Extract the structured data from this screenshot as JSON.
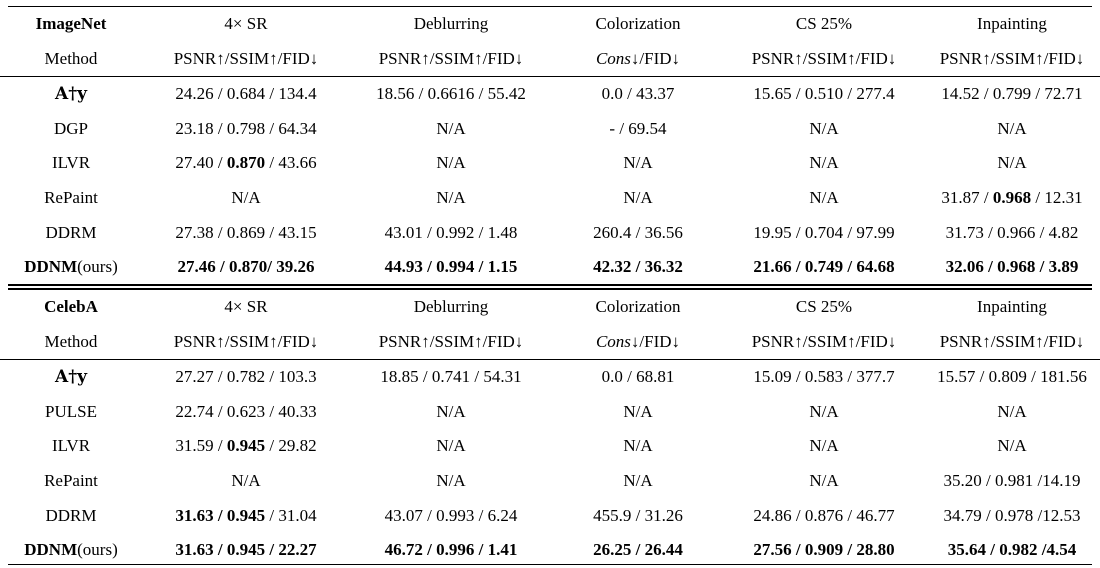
{
  "sections": [
    {
      "dataset": "ImageNet",
      "tasks": [
        "4× SR",
        "Deblurring",
        "Colorization",
        "CS 25%",
        "Inpainting"
      ],
      "method_label": "Method",
      "metrics": [
        {
          "parts": [
            {
              "t": "PSNR↑/SSIM↑/FID↓",
              "b": false,
              "i": false
            }
          ]
        },
        {
          "parts": [
            {
              "t": "PSNR↑/SSIM↑/FID↓",
              "b": false,
              "i": false
            }
          ]
        },
        {
          "parts": [
            {
              "t": "Cons",
              "b": false,
              "i": true
            },
            {
              "t": "↓/FID↓",
              "b": false,
              "i": false
            }
          ]
        },
        {
          "parts": [
            {
              "t": "PSNR↑/SSIM↑/FID↓",
              "b": false,
              "i": false
            }
          ]
        },
        {
          "parts": [
            {
              "t": "PSNR↑/SSIM↑/FID↓",
              "b": false,
              "i": false
            }
          ]
        }
      ],
      "rows": [
        {
          "method": "A†y",
          "method_style": "pinv",
          "cells": [
            [
              {
                "t": "24.26 / 0.684 / 134.4",
                "b": false
              }
            ],
            [
              {
                "t": "18.56 / 0.6616 / 55.42",
                "b": false
              }
            ],
            [
              {
                "t": "0.0 / 43.37",
                "b": false
              }
            ],
            [
              {
                "t": "15.65 / 0.510 / 277.4",
                "b": false
              }
            ],
            [
              {
                "t": "14.52 / 0.799 / 72.71",
                "b": false
              }
            ]
          ]
        },
        {
          "method": "DGP",
          "method_style": "plain",
          "cells": [
            [
              {
                "t": "23.18 / 0.798 / 64.34",
                "b": false
              }
            ],
            [
              {
                "t": "N/A",
                "b": false
              }
            ],
            [
              {
                "t": "- / 69.54",
                "b": false
              }
            ],
            [
              {
                "t": "N/A",
                "b": false
              }
            ],
            [
              {
                "t": "N/A",
                "b": false
              }
            ]
          ]
        },
        {
          "method": "ILVR",
          "method_style": "plain",
          "cells": [
            [
              {
                "t": "27.40 / ",
                "b": false
              },
              {
                "t": "0.870",
                "b": true
              },
              {
                "t": " / 43.66",
                "b": false
              }
            ],
            [
              {
                "t": "N/A",
                "b": false
              }
            ],
            [
              {
                "t": "N/A",
                "b": false
              }
            ],
            [
              {
                "t": "N/A",
                "b": false
              }
            ],
            [
              {
                "t": "N/A",
                "b": false
              }
            ]
          ]
        },
        {
          "method": "RePaint",
          "method_style": "plain",
          "cells": [
            [
              {
                "t": "N/A",
                "b": false
              }
            ],
            [
              {
                "t": "N/A",
                "b": false
              }
            ],
            [
              {
                "t": "N/A",
                "b": false
              }
            ],
            [
              {
                "t": "N/A",
                "b": false
              }
            ],
            [
              {
                "t": "31.87 / ",
                "b": false
              },
              {
                "t": "0.968",
                "b": true
              },
              {
                "t": " / 12.31",
                "b": false
              }
            ]
          ]
        },
        {
          "method": "DDRM",
          "method_style": "plain",
          "cells": [
            [
              {
                "t": "27.38 / 0.869 / 43.15",
                "b": false
              }
            ],
            [
              {
                "t": "43.01 / 0.992 / 1.48",
                "b": false
              }
            ],
            [
              {
                "t": "260.4 / 36.56",
                "b": false
              }
            ],
            [
              {
                "t": "19.95 / 0.704 / 97.99",
                "b": false
              }
            ],
            [
              {
                "t": "31.73 / 0.966 / 4.82",
                "b": false
              }
            ]
          ]
        },
        {
          "method": "DDNM",
          "method_suffix": "(ours)",
          "method_style": "ours",
          "cells": [
            [
              {
                "t": "27.46 / 0.870/ 39.26",
                "b": true
              }
            ],
            [
              {
                "t": "44.93 / 0.994 / 1.15",
                "b": true
              }
            ],
            [
              {
                "t": "42.32 / 36.32",
                "b": true
              }
            ],
            [
              {
                "t": "21.66 / 0.749 / 64.68",
                "b": true
              }
            ],
            [
              {
                "t": "32.06 / 0.968 / 3.89",
                "b": true
              }
            ]
          ]
        }
      ]
    },
    {
      "dataset": "CelebA",
      "tasks": [
        "4× SR",
        "Deblurring",
        "Colorization",
        "CS 25%",
        "Inpainting"
      ],
      "method_label": "Method",
      "metrics": [
        {
          "parts": [
            {
              "t": "PSNR↑/SSIM↑/FID↓",
              "b": false,
              "i": false
            }
          ]
        },
        {
          "parts": [
            {
              "t": "PSNR↑/SSIM↑/FID↓",
              "b": false,
              "i": false
            }
          ]
        },
        {
          "parts": [
            {
              "t": "Cons",
              "b": false,
              "i": true
            },
            {
              "t": "↓/FID↓",
              "b": false,
              "i": false
            }
          ]
        },
        {
          "parts": [
            {
              "t": "PSNR↑/SSIM↑/FID↓",
              "b": false,
              "i": false
            }
          ]
        },
        {
          "parts": [
            {
              "t": "PSNR↑/SSIM↑/FID↓",
              "b": false,
              "i": false
            }
          ]
        }
      ],
      "rows": [
        {
          "method": "A†y",
          "method_style": "pinv",
          "cells": [
            [
              {
                "t": "27.27 / 0.782 / 103.3",
                "b": false
              }
            ],
            [
              {
                "t": "18.85 / 0.741 / 54.31",
                "b": false
              }
            ],
            [
              {
                "t": "0.0 / 68.81",
                "b": false
              }
            ],
            [
              {
                "t": "15.09 / 0.583 / 377.7",
                "b": false
              }
            ],
            [
              {
                "t": "15.57 / 0.809 / 181.56",
                "b": false
              }
            ]
          ]
        },
        {
          "method": "PULSE",
          "method_style": "plain",
          "cells": [
            [
              {
                "t": "22.74 / 0.623 / 40.33",
                "b": false
              }
            ],
            [
              {
                "t": "N/A",
                "b": false
              }
            ],
            [
              {
                "t": "N/A",
                "b": false
              }
            ],
            [
              {
                "t": "N/A",
                "b": false
              }
            ],
            [
              {
                "t": "N/A",
                "b": false
              }
            ]
          ]
        },
        {
          "method": "ILVR",
          "method_style": "plain",
          "cells": [
            [
              {
                "t": "31.59 / ",
                "b": false
              },
              {
                "t": "0.945",
                "b": true
              },
              {
                "t": " / 29.82",
                "b": false
              }
            ],
            [
              {
                "t": "N/A",
                "b": false
              }
            ],
            [
              {
                "t": "N/A",
                "b": false
              }
            ],
            [
              {
                "t": "N/A",
                "b": false
              }
            ],
            [
              {
                "t": "N/A",
                "b": false
              }
            ]
          ]
        },
        {
          "method": "RePaint",
          "method_style": "plain",
          "cells": [
            [
              {
                "t": "N/A",
                "b": false
              }
            ],
            [
              {
                "t": "N/A",
                "b": false
              }
            ],
            [
              {
                "t": "N/A",
                "b": false
              }
            ],
            [
              {
                "t": "N/A",
                "b": false
              }
            ],
            [
              {
                "t": "35.20 / 0.981 /14.19",
                "b": false
              }
            ]
          ]
        },
        {
          "method": "DDRM",
          "method_style": "plain",
          "cells": [
            [
              {
                "t": "31.63 / 0.945",
                "b": true
              },
              {
                "t": " / 31.04",
                "b": false
              }
            ],
            [
              {
                "t": "43.07 / 0.993 / 6.24",
                "b": false
              }
            ],
            [
              {
                "t": "455.9 / 31.26",
                "b": false
              }
            ],
            [
              {
                "t": "24.86 / 0.876 / 46.77",
                "b": false
              }
            ],
            [
              {
                "t": "34.79 / 0.978 /12.53",
                "b": false
              }
            ]
          ]
        },
        {
          "method": "DDNM",
          "method_suffix": "(ours)",
          "method_style": "ours",
          "cells": [
            [
              {
                "t": "31.63 / 0.945 / 22.27",
                "b": true
              }
            ],
            [
              {
                "t": "46.72 / 0.996 / 1.41",
                "b": true
              }
            ],
            [
              {
                "t": "26.25 / 26.44",
                "b": true
              }
            ],
            [
              {
                "t": "27.56 / 0.909 / 28.80",
                "b": true
              }
            ],
            [
              {
                "t": "35.64 / 0.982 /4.54",
                "b": true
              }
            ]
          ]
        }
      ]
    }
  ]
}
